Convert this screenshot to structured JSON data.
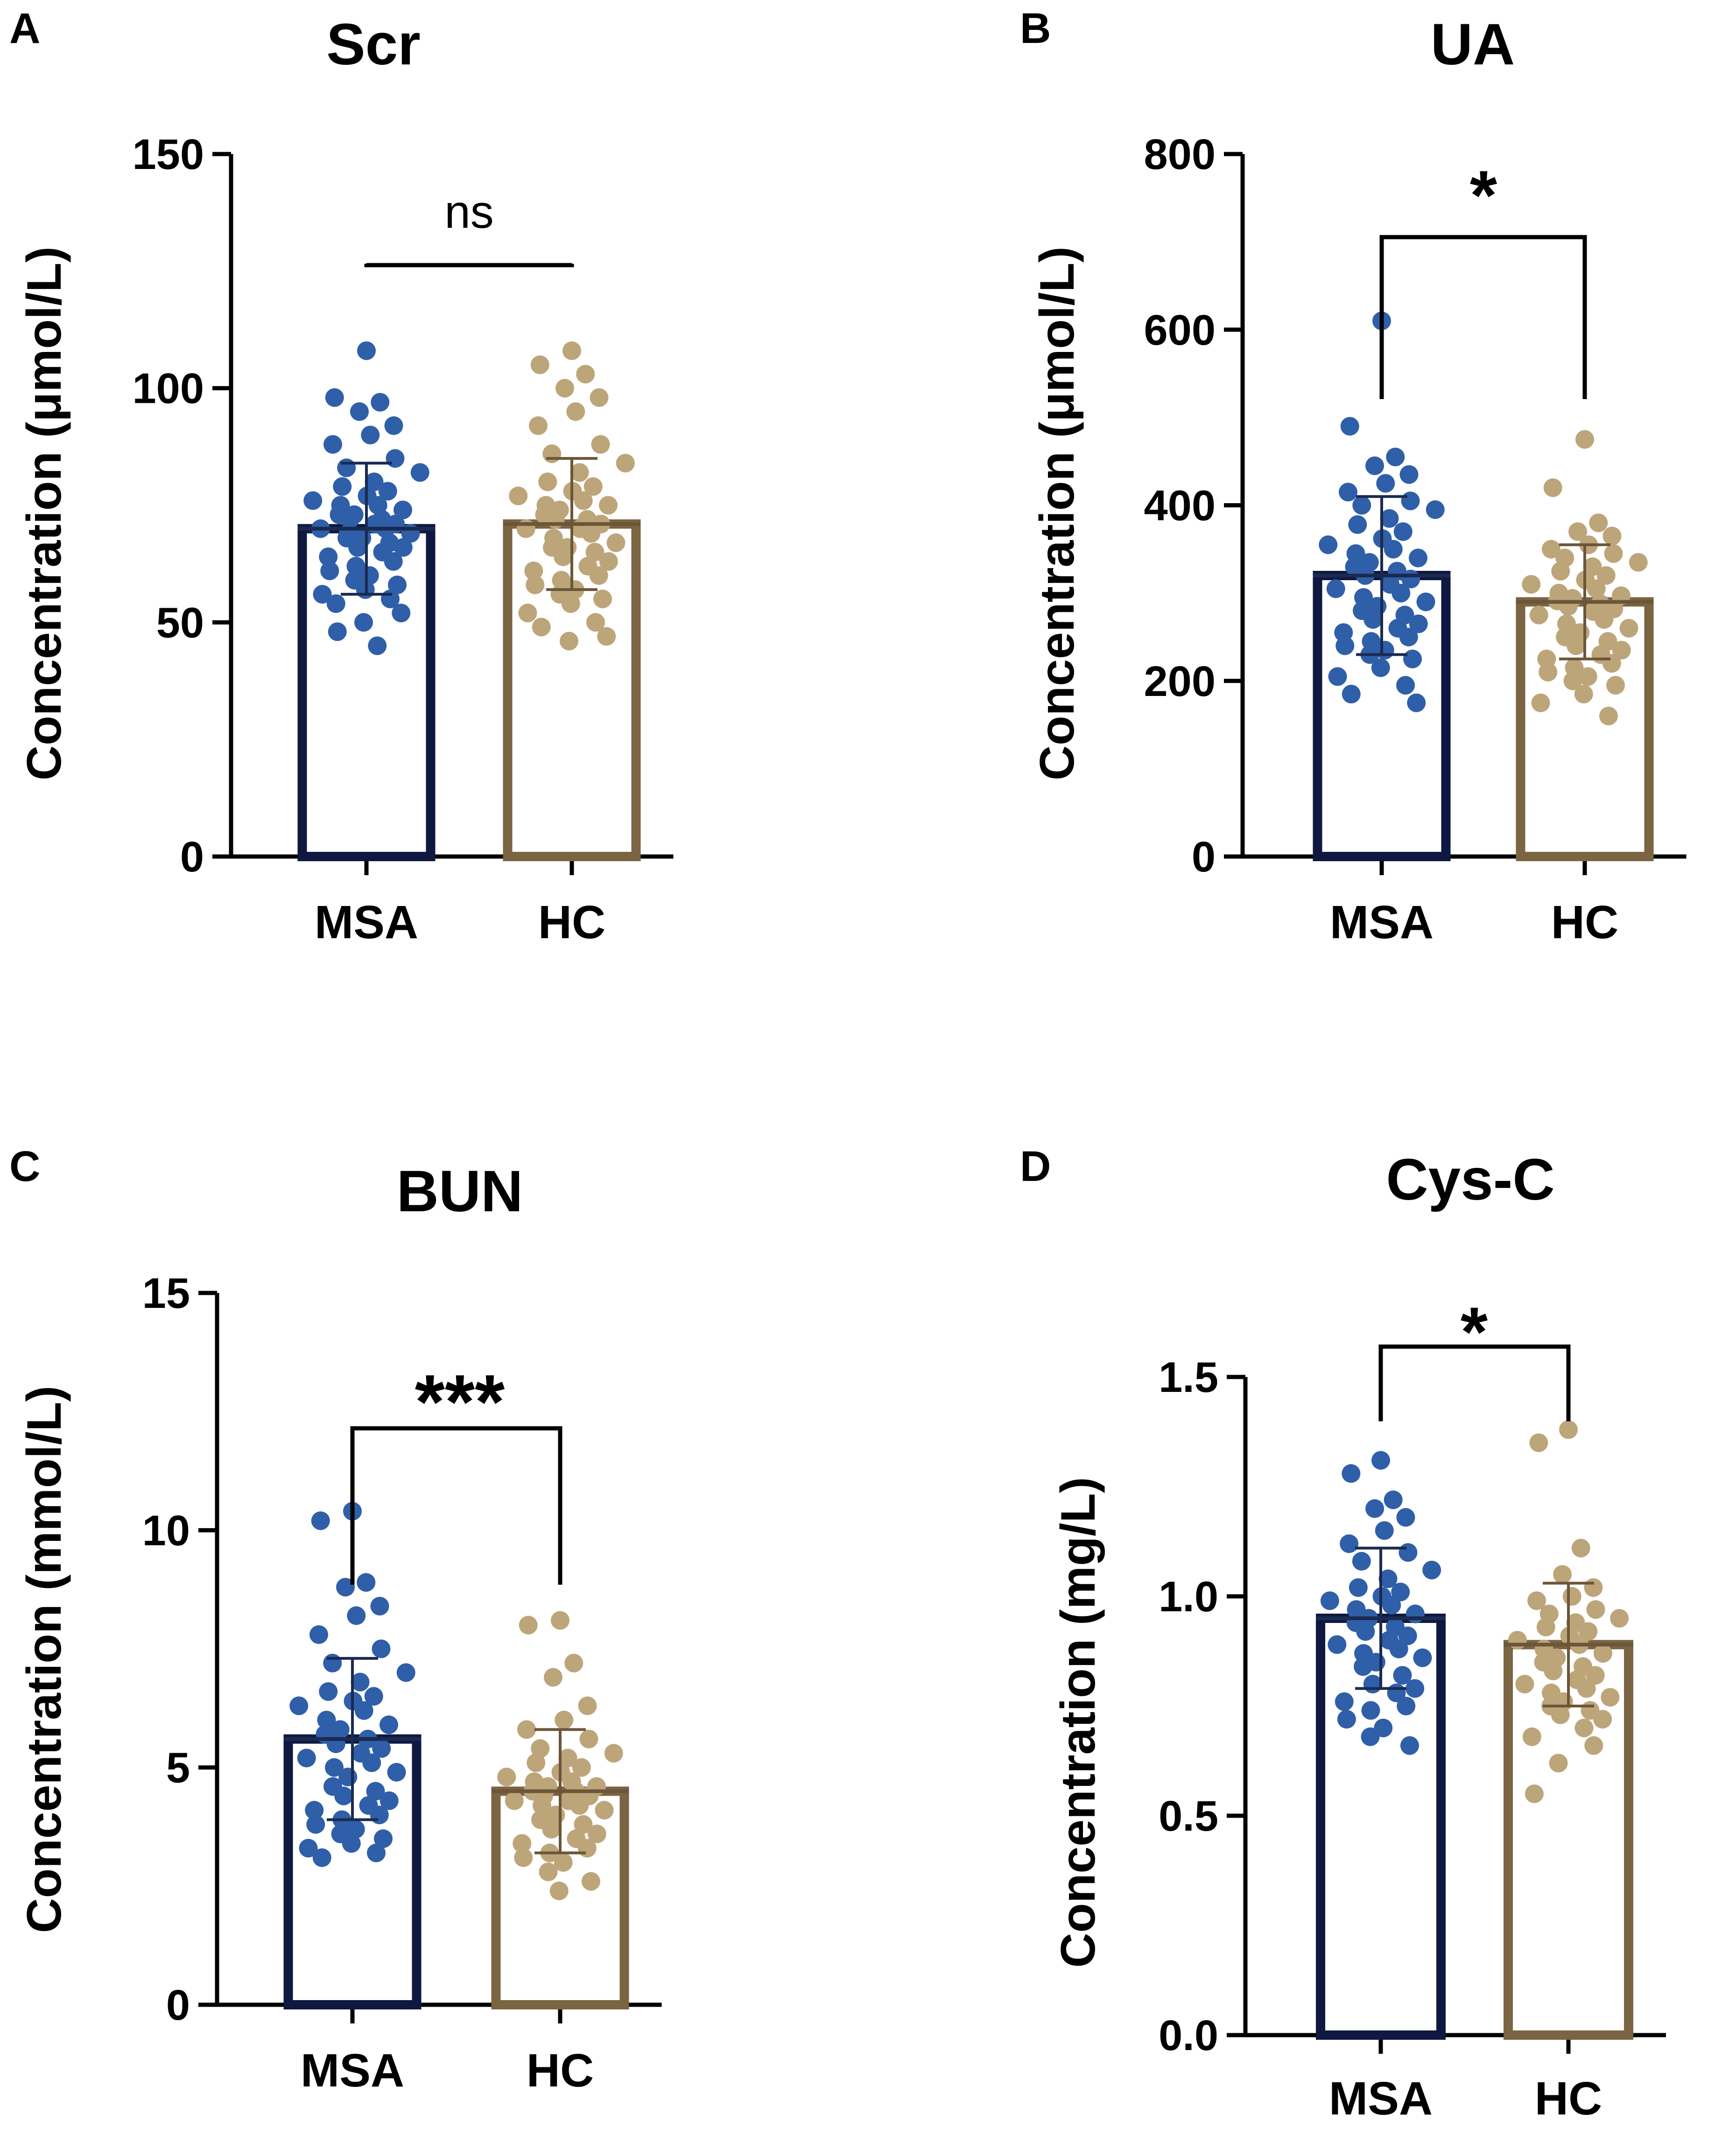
{
  "chart_data": [
    {
      "type": "bar",
      "panel": "A",
      "title": "Scr",
      "ylabel": "Concentration (μmol/L)",
      "categories": [
        "MSA",
        "HC"
      ],
      "ylim": [
        0,
        150
      ],
      "yticks": [
        0,
        50,
        100,
        150
      ],
      "ytick_labels": [
        "0",
        "50",
        "100",
        "150"
      ],
      "values": [
        70,
        71
      ],
      "sd": [
        14,
        14
      ],
      "significance": "ns",
      "colors": [
        "#2f5fa8",
        "#bda57a"
      ],
      "bar_edge_colors": [
        "#0f1840",
        "#7a6442"
      ],
      "points": [
        [
          108,
          98,
          97,
          95,
          92,
          90,
          88,
          85,
          83,
          82,
          80,
          79,
          78,
          77,
          76,
          75,
          75,
          74,
          73,
          73,
          72,
          72,
          71,
          71,
          70,
          70,
          69,
          69,
          68,
          68,
          67,
          66,
          66,
          65,
          64,
          63,
          62,
          61,
          60,
          59,
          58,
          57,
          56,
          55,
          54,
          52,
          50,
          48,
          45
        ],
        [
          108,
          105,
          103,
          100,
          98,
          95,
          92,
          88,
          86,
          84,
          82,
          80,
          79,
          78,
          77,
          76,
          75,
          75,
          74,
          73,
          72,
          72,
          71,
          70,
          70,
          69,
          68,
          67,
          66,
          66,
          65,
          64,
          63,
          62,
          61,
          60,
          59,
          58,
          57,
          56,
          55,
          54,
          52,
          50,
          49,
          47,
          46
        ]
      ]
    },
    {
      "type": "bar",
      "panel": "B",
      "title": "UA",
      "ylabel": "Concentration (μmol/L)",
      "categories": [
        "MSA",
        "HC"
      ],
      "ylim": [
        0,
        800
      ],
      "yticks": [
        0,
        200,
        400,
        600,
        800
      ],
      "ytick_labels": [
        "0",
        "200",
        "400",
        "600",
        "800"
      ],
      "values": [
        320,
        290
      ],
      "sd": [
        90,
        65
      ],
      "significance": "*",
      "colors": [
        "#2f5fa8",
        "#bda57a"
      ],
      "bar_edge_colors": [
        "#0f1840",
        "#7a6442"
      ],
      "points": [
        [
          610,
          490,
          455,
          445,
          435,
          425,
          415,
          405,
          400,
          395,
          385,
          378,
          370,
          362,
          355,
          350,
          345,
          340,
          335,
          330,
          325,
          320,
          316,
          310,
          305,
          300,
          295,
          290,
          285,
          280,
          275,
          270,
          265,
          260,
          255,
          250,
          245,
          240,
          235,
          230,
          225,
          215,
          205,
          195,
          185,
          175
        ],
        [
          475,
          420,
          380,
          370,
          365,
          355,
          350,
          345,
          340,
          335,
          330,
          325,
          320,
          315,
          310,
          305,
          300,
          297,
          294,
          291,
          288,
          285,
          282,
          279,
          275,
          270,
          265,
          260,
          255,
          250,
          245,
          240,
          235,
          230,
          225,
          220,
          215,
          210,
          205,
          200,
          195,
          185,
          175,
          160
        ]
      ]
    },
    {
      "type": "bar",
      "panel": "C",
      "title": "BUN",
      "ylabel": "Concentration (mmol/L)",
      "categories": [
        "MSA",
        "HC"
      ],
      "ylim": [
        0,
        15
      ],
      "yticks": [
        0,
        5,
        10,
        15
      ],
      "ytick_labels": [
        "0",
        "5",
        "10",
        "15"
      ],
      "values": [
        5.6,
        4.5
      ],
      "sd": [
        1.7,
        1.3
      ],
      "significance": "***",
      "colors": [
        "#2f5fa8",
        "#bda57a"
      ],
      "bar_edge_colors": [
        "#0f1840",
        "#7a6442"
      ],
      "points": [
        [
          10.4,
          10.2,
          8.9,
          8.8,
          8.4,
          8.2,
          7.8,
          7.5,
          7.2,
          7.0,
          6.8,
          6.6,
          6.5,
          6.4,
          6.3,
          6.2,
          6.0,
          5.9,
          5.8,
          5.7,
          5.6,
          5.5,
          5.4,
          5.3,
          5.2,
          5.1,
          5.0,
          4.9,
          4.8,
          4.6,
          4.5,
          4.4,
          4.3,
          4.2,
          4.1,
          4.0,
          3.9,
          3.8,
          3.7,
          3.6,
          3.5,
          3.4,
          3.3,
          3.2,
          3.1
        ],
        [
          8.1,
          8.0,
          7.2,
          6.9,
          6.3,
          6.0,
          5.8,
          5.6,
          5.4,
          5.3,
          5.2,
          5.1,
          5.0,
          4.9,
          4.8,
          4.7,
          4.7,
          4.6,
          4.6,
          4.5,
          4.5,
          4.4,
          4.4,
          4.3,
          4.3,
          4.2,
          4.2,
          4.1,
          4.0,
          3.9,
          3.8,
          3.7,
          3.6,
          3.5,
          3.4,
          3.3,
          3.2,
          3.1,
          3.0,
          2.8,
          2.6,
          2.4
        ]
      ]
    },
    {
      "type": "bar",
      "panel": "D",
      "title": "Cys-C",
      "ylabel": "Concentration (mg/L)",
      "categories": [
        "MSA",
        "HC"
      ],
      "ylim": [
        0,
        1.5
      ],
      "yticks": [
        0,
        0.5,
        1.0,
        1.5
      ],
      "ytick_labels": [
        "0.0",
        "0.5",
        "1.0",
        "1.5"
      ],
      "values": [
        0.95,
        0.89
      ],
      "sd": [
        0.16,
        0.14
      ],
      "significance": "*",
      "colors": [
        "#2f5fa8",
        "#bda57a"
      ],
      "bar_edge_colors": [
        "#0f1840",
        "#7a6442"
      ],
      "points": [
        [
          1.31,
          1.28,
          1.22,
          1.2,
          1.18,
          1.15,
          1.12,
          1.1,
          1.08,
          1.06,
          1.04,
          1.02,
          1.01,
          1.0,
          0.99,
          0.98,
          0.97,
          0.96,
          0.95,
          0.94,
          0.93,
          0.92,
          0.91,
          0.9,
          0.89,
          0.88,
          0.87,
          0.86,
          0.85,
          0.84,
          0.82,
          0.8,
          0.79,
          0.78,
          0.76,
          0.75,
          0.74,
          0.72,
          0.7,
          0.68,
          0.66
        ],
        [
          1.38,
          1.35,
          1.11,
          1.05,
          1.02,
          1.0,
          0.99,
          0.97,
          0.96,
          0.95,
          0.94,
          0.93,
          0.92,
          0.91,
          0.9,
          0.89,
          0.88,
          0.87,
          0.86,
          0.85,
          0.84,
          0.83,
          0.82,
          0.81,
          0.8,
          0.79,
          0.78,
          0.77,
          0.76,
          0.75,
          0.74,
          0.73,
          0.72,
          0.7,
          0.68,
          0.66,
          0.62,
          0.55
        ]
      ]
    }
  ]
}
